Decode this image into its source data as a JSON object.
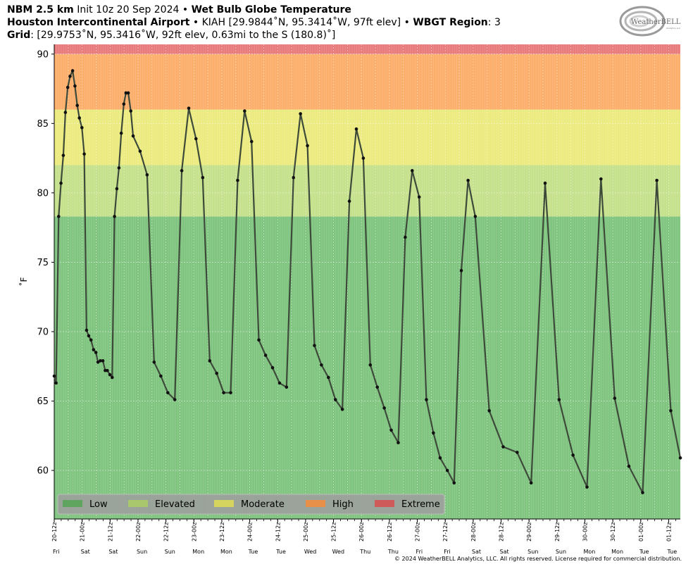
{
  "header": {
    "line1": {
      "model": "NBM 2.5 km",
      "init": " Init 10z 20 Sep 2024 • ",
      "product": "Wet Bulb Globe Temperature"
    },
    "line2": {
      "station": "Houston Intercontinental Airport",
      "details": " • KIAH [29.9844˚N, 95.3414˚W, 97ft elev] • ",
      "region_label": "WBGT Region",
      "region_value": ": 3"
    },
    "line3": {
      "grid_label": "Grid",
      "grid_value": ": [29.9753˚N, 95.3416˚W, 92ft elev, 0.63mi to the S (180.8)˚]"
    }
  },
  "logo": {
    "text_big": "WeatherBELL",
    "text_small": "Analytics LLC"
  },
  "copyright": "© 2024 WeatherBELL Analytics, LLC. All rights reserved. License required for commercial distribution.",
  "colors": {
    "low": "#7fc47f",
    "elevated": "#c5e18c",
    "moderate": "#ebeb7f",
    "high": "#fcae6b",
    "extreme": "#e87b7b",
    "line": "#3d4a3a",
    "legend_bg": "#9e9e9e",
    "legend_low": "#5fa55f",
    "legend_elevated": "#a9c76d",
    "legend_moderate": "#d4d45e",
    "legend_high": "#e8904a",
    "legend_extreme": "#cf5a5a"
  },
  "chart_data": {
    "type": "line",
    "ylabel": "˚F",
    "ylim": [
      56.5,
      90.7
    ],
    "y_ticks": [
      60,
      65,
      70,
      75,
      80,
      85,
      90
    ],
    "xlim_hours": [
      0,
      269
    ],
    "bands": [
      {
        "name": "Low",
        "from": 56.5,
        "to": 78.3
      },
      {
        "name": "Elevated",
        "from": 78.3,
        "to": 82
      },
      {
        "name": "Moderate",
        "from": 82,
        "to": 86
      },
      {
        "name": "High",
        "from": 86,
        "to": 90
      },
      {
        "name": "Extreme",
        "from": 90,
        "to": 90.7
      }
    ],
    "legend": [
      "Low",
      "Elevated",
      "Moderate",
      "High",
      "Extreme"
    ],
    "x_ticks": [
      {
        "hours": 0,
        "label": "20-12z",
        "day": "Fri"
      },
      {
        "hours": 12,
        "label": "21-00z",
        "day": "Sat"
      },
      {
        "hours": 24,
        "label": "21-12z",
        "day": "Sat"
      },
      {
        "hours": 36,
        "label": "22-00z",
        "day": "Sun"
      },
      {
        "hours": 48,
        "label": "22-12z",
        "day": "Sun"
      },
      {
        "hours": 60,
        "label": "23-00z",
        "day": "Mon"
      },
      {
        "hours": 72,
        "label": "23-12z",
        "day": "Mon"
      },
      {
        "hours": 84,
        "label": "24-00z",
        "day": "Tue"
      },
      {
        "hours": 96,
        "label": "24-12z",
        "day": "Tue"
      },
      {
        "hours": 108,
        "label": "25-00z",
        "day": "Wed"
      },
      {
        "hours": 120,
        "label": "25-12z",
        "day": "Wed"
      },
      {
        "hours": 132,
        "label": "26-00z",
        "day": "Thu"
      },
      {
        "hours": 144,
        "label": "26-12z",
        "day": "Thu"
      },
      {
        "hours": 156,
        "label": "27-00z",
        "day": "Fri"
      },
      {
        "hours": 168,
        "label": "27-12z",
        "day": "Fri"
      },
      {
        "hours": 180,
        "label": "28-00z",
        "day": "Sat"
      },
      {
        "hours": 192,
        "label": "28-12z",
        "day": "Sat"
      },
      {
        "hours": 204,
        "label": "29-00z",
        "day": "Sun"
      },
      {
        "hours": 216,
        "label": "29-12z",
        "day": "Sun"
      },
      {
        "hours": 228,
        "label": "30-00z",
        "day": "Mon"
      },
      {
        "hours": 240,
        "label": "30-12z",
        "day": "Mon"
      },
      {
        "hours": 252,
        "label": "01-00z",
        "day": "Tue"
      },
      {
        "hours": 264,
        "label": "01-12z",
        "day": "Tue"
      }
    ],
    "series": [
      {
        "x_hours": [
          0,
          0.8,
          1.9,
          2.9,
          3.9,
          4.8,
          5.8,
          6.8,
          7.9,
          8.9,
          9.9,
          10.8,
          11.9,
          12.9,
          13.9,
          14.8,
          15.8,
          16.9,
          17.9,
          18.8,
          19.8,
          20.9,
          21.9,
          22.8,
          23.9,
          24.9,
          25.9,
          26.9,
          27.8,
          28.8,
          29.9,
          30.8,
          31.8,
          32.9,
          33.9,
          36.9,
          39.9,
          42.9,
          45.8,
          48.8,
          51.8,
          54.8,
          57.8,
          60.9,
          63.8,
          66.8,
          69.8,
          72.8,
          75.8,
          78.8,
          81.8,
          84.8,
          87.9,
          90.8,
          93.8,
          96.8,
          99.8,
          102.8,
          105.8,
          108.8,
          111.8,
          114.8,
          117.8,
          120.8,
          123.8,
          126.8,
          129.8,
          132.8,
          135.8,
          138.8,
          141.8,
          144.8,
          147.8,
          150.8,
          153.8,
          156.8,
          159.9,
          162.9,
          165.8,
          168.9,
          171.8,
          174.9,
          177.8,
          180.9,
          186.9,
          192.9,
          198.9,
          204.9,
          210.9,
          216.9,
          222.9,
          228.9,
          234.9,
          240.8,
          246.9,
          252.8,
          258.9,
          264.9,
          269
        ],
        "values": [
          66.8,
          66.3,
          78.3,
          80.7,
          82.7,
          85.8,
          87.6,
          88.4,
          88.8,
          87.7,
          86.3,
          85.4,
          84.7,
          82.8,
          70.1,
          69.7,
          69.4,
          68.7,
          68.5,
          67.8,
          67.9,
          67.9,
          67.2,
          67.2,
          66.9,
          66.7,
          78.3,
          80.3,
          81.8,
          84.3,
          86.4,
          87.2,
          87.2,
          85.9,
          84.1,
          83.0,
          81.3,
          67.8,
          66.8,
          65.6,
          65.1,
          81.6,
          86.1,
          83.9,
          81.1,
          67.9,
          67.0,
          65.6,
          65.6,
          80.9,
          85.9,
          83.7,
          69.4,
          68.3,
          67.4,
          66.3,
          66.0,
          81.1,
          85.7,
          83.4,
          69.0,
          67.6,
          66.7,
          65.1,
          64.4,
          79.4,
          84.6,
          82.5,
          67.6,
          66.0,
          64.5,
          62.9,
          62.0,
          76.8,
          81.6,
          79.7,
          65.1,
          62.7,
          60.9,
          60.0,
          59.1,
          74.4,
          80.9,
          78.3,
          64.3,
          61.7,
          61.3,
          59.1,
          80.7,
          65.1,
          61.1,
          58.8,
          81.0,
          65.2,
          60.3,
          58.4,
          80.9,
          64.3,
          60.9
        ]
      }
    ]
  }
}
